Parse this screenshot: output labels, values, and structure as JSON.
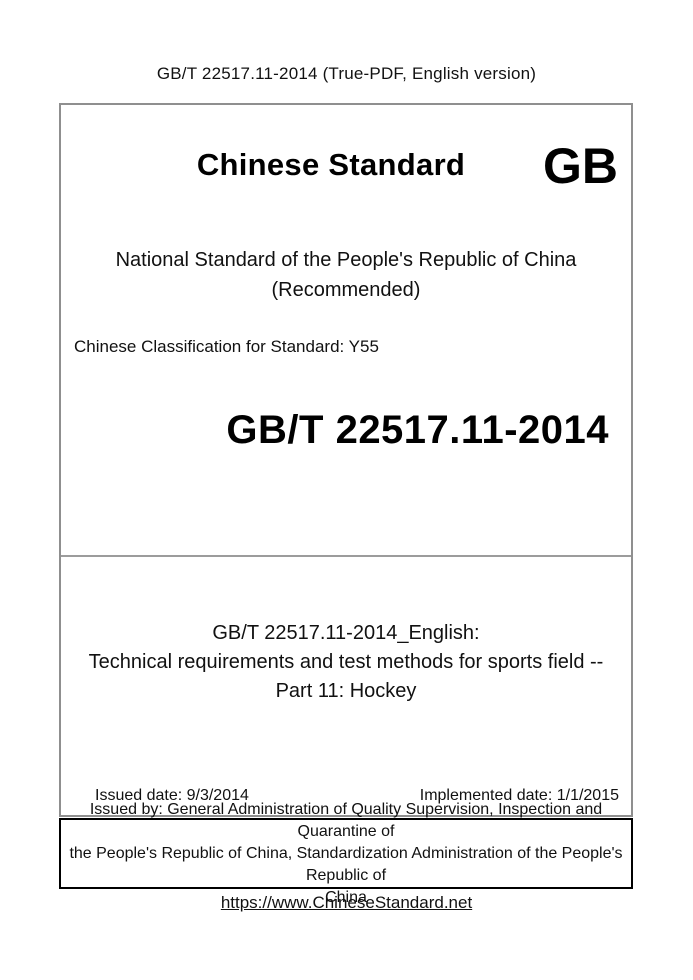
{
  "header": {
    "text": "GB/T 22517.11-2014 (True-PDF, English version)"
  },
  "cover": {
    "brand_title": "Chinese Standard",
    "brand_code": "GB",
    "national_line1": "National Standard of the People's Republic of China",
    "national_line2": "(Recommended)",
    "classification": "Chinese Classification for Standard: Y55",
    "standard_number": "GB/T 22517.11-2014",
    "title_lines": [
      "GB/T 22517.11-2014_English:",
      "Technical requirements and test methods for sports field --",
      "Part 11: Hockey"
    ],
    "issued_date": "Issued date: 9/3/2014",
    "implemented_date": "Implemented date: 1/1/2015"
  },
  "issuer": {
    "lines": [
      "Issued by: General Administration of Quality Supervision, Inspection and Quarantine of",
      "the People's Republic of China, Standardization Administration of the People's Republic of",
      "China"
    ]
  },
  "footer": {
    "link": "https://www.ChineseStandard.net"
  },
  "colors": {
    "background": "#ffffff",
    "text": "#111111",
    "cover_border": "#8f8f8f",
    "issuer_border": "#000000"
  }
}
